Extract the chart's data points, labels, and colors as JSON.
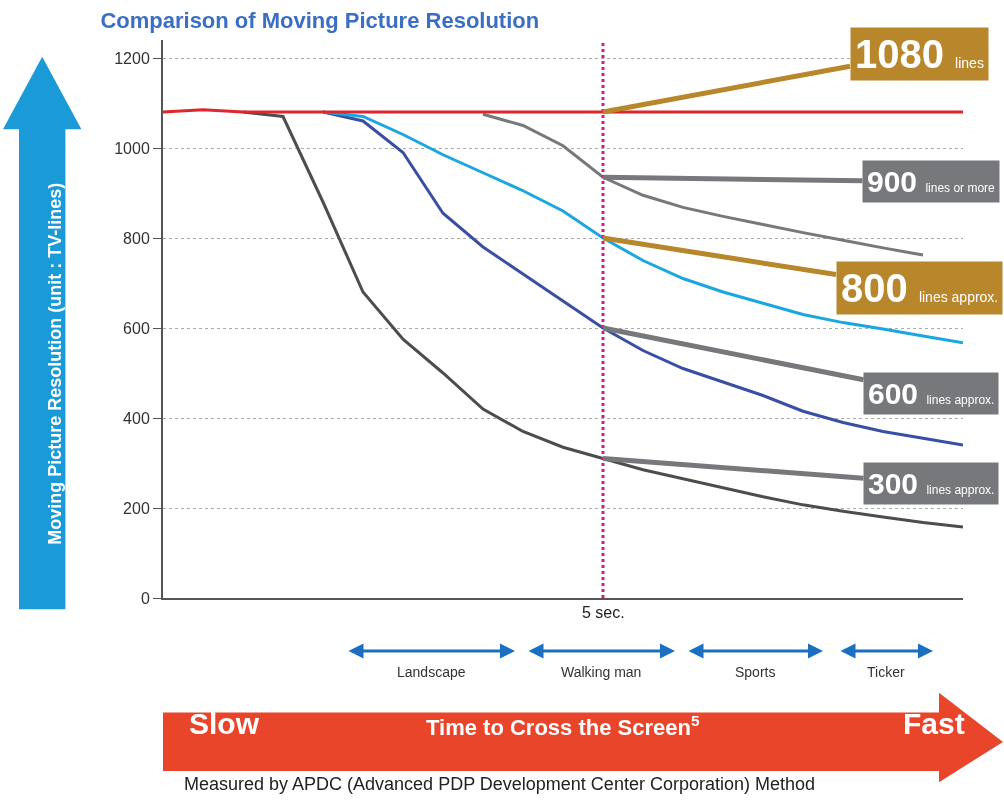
{
  "chart_data": {
    "type": "line",
    "title": "Comparison of Moving Picture Resolution",
    "xlabel": "Time to Cross the Screen$^{5}$",
    "ylabel": "Moving Picture Resolution (unit : TV-lines)",
    "categories": [
      null,
      null,
      null,
      null,
      null,
      null,
      null,
      null,
      null,
      null,
      null,
      null,
      null,
      null,
      null,
      null,
      null,
      null,
      null,
      null,
      null
    ],
    "series": [
      {
        "color": "#e0252b",
        "values": [
          1080,
          1085,
          1080,
          1080,
          1080,
          1080,
          1080,
          1080,
          1080,
          1080,
          1080,
          1080,
          1080,
          1080,
          1080,
          1080,
          1080,
          1080,
          1080,
          1080,
          1080
        ]
      },
      {
        "color": "#77787b",
        "values": [
          null,
          null,
          null,
          null,
          null,
          null,
          null,
          null,
          1075,
          1050,
          1005,
          935,
          895,
          868,
          848,
          830,
          812,
          795,
          778,
          762,
          null
        ]
      },
      {
        "color": "#1ba6e0",
        "values": [
          null,
          null,
          null,
          null,
          1080,
          1070,
          1030,
          985,
          945,
          905,
          860,
          800,
          750,
          710,
          680,
          655,
          630,
          612,
          598,
          582,
          567
        ]
      },
      {
        "color": "#3a4fa3",
        "values": [
          null,
          null,
          null,
          null,
          1080,
          1060,
          990,
          855,
          780,
          720,
          660,
          600,
          550,
          510,
          480,
          450,
          415,
          390,
          370,
          355,
          340
        ]
      },
      {
        "color": "#4d4d4d",
        "values": [
          null,
          null,
          1080,
          1070,
          880,
          680,
          575,
          500,
          420,
          370,
          335,
          310,
          285,
          265,
          245,
          225,
          207,
          193,
          180,
          168,
          158
        ]
      }
    ],
    "ylim": [
      0,
      1240
    ],
    "yticks": [
      0,
      200,
      400,
      600,
      800,
      1000,
      1200
    ],
    "grid": "y",
    "marker": "none",
    "line_style": "solid",
    "tick_labels": "y",
    "annotations": [
      "1080 lines",
      "900 lines or more",
      "800 lines approx.",
      "600 lines approx.",
      "300 lines approx.",
      "5 sec.",
      "Landscape",
      "Walking man",
      "Sports",
      "Ticker",
      "Slow",
      "Fast",
      "Measured by APDC (Advanced PDP Development Center Corporation) Method"
    ]
  }
}
